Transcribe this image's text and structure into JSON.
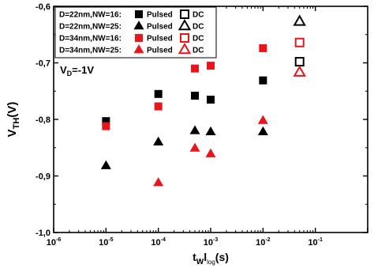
{
  "chart_data": {
    "type": "scatter",
    "title": "",
    "xlabel": {
      "main": "t",
      "sub1": "W",
      "sep": "l",
      "sub2": "log",
      "unit": "(s)"
    },
    "ylabel": {
      "main": "V",
      "sub": "TH",
      "unit": "(V)"
    },
    "x_scale": "log",
    "xlim": [
      1e-06,
      1
    ],
    "ylim": [
      -1.0,
      -0.6
    ],
    "x_ticks": [
      {
        "value": 1e-06,
        "base": "10",
        "exp": "-6"
      },
      {
        "value": 1e-05,
        "base": "10",
        "exp": "-5"
      },
      {
        "value": 0.0001,
        "base": "10",
        "exp": "-4"
      },
      {
        "value": 0.001,
        "base": "10",
        "exp": "-3"
      },
      {
        "value": 0.01,
        "base": "10",
        "exp": "-2"
      },
      {
        "value": 0.1,
        "base": "10",
        "exp": "-1"
      }
    ],
    "y_ticks": [
      {
        "value": -1.0,
        "label": "-1,0"
      },
      {
        "value": -0.9,
        "label": "-0,9"
      },
      {
        "value": -0.8,
        "label": "-0,8"
      },
      {
        "value": -0.7,
        "label": "-0,7"
      },
      {
        "value": -0.6,
        "label": "-0,6"
      }
    ],
    "grid": false,
    "legend_placement": "top-left",
    "legend_pulsed": "Pulsed",
    "legend_dc": "DC",
    "annotation": {
      "main": "V",
      "sub": "D",
      "rest": "=-1V"
    },
    "series": [
      {
        "name": "D=22nm,NW=16:",
        "marker": "square",
        "color": "#000000",
        "pulsed": [
          [
            1e-05,
            -0.803
          ],
          [
            0.0001,
            -0.755
          ],
          [
            0.0005,
            -0.758
          ],
          [
            0.001,
            -0.765
          ],
          [
            0.01,
            -0.731
          ]
        ],
        "dc": [
          [
            0.05,
            -0.698
          ]
        ]
      },
      {
        "name": "D=22nm,NW=25:",
        "marker": "triangle",
        "color": "#000000",
        "pulsed": [
          [
            1e-05,
            -0.882
          ],
          [
            0.0001,
            -0.84
          ],
          [
            0.0005,
            -0.82
          ],
          [
            0.001,
            -0.822
          ],
          [
            0.01,
            -0.822
          ]
        ],
        "dc": [
          [
            0.05,
            -0.627
          ]
        ]
      },
      {
        "name": "D=34nm,NW=16:",
        "marker": "square",
        "color": "#e8151b",
        "pulsed": [
          [
            1e-05,
            -0.812
          ],
          [
            0.0001,
            -0.777
          ],
          [
            0.0005,
            -0.71
          ],
          [
            0.001,
            -0.705
          ],
          [
            0.01,
            -0.674
          ]
        ],
        "dc": [
          [
            0.05,
            -0.664
          ]
        ]
      },
      {
        "name": "D=34nm,NW=25:",
        "marker": "triangle",
        "color": "#e8151b",
        "pulsed": [
          [
            1e-05,
            null
          ],
          [
            0.0001,
            -0.912
          ],
          [
            0.0005,
            -0.851
          ],
          [
            0.001,
            -0.861
          ],
          [
            0.01,
            -0.802
          ]
        ],
        "dc": [
          [
            0.05,
            -0.717
          ]
        ]
      }
    ]
  }
}
